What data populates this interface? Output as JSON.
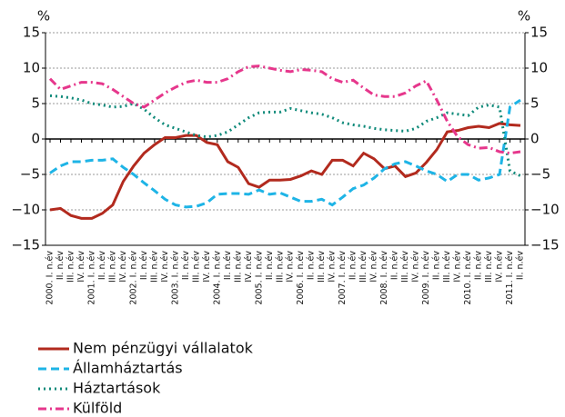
{
  "chart_data": {
    "type": "line",
    "y_unit": "%",
    "y2_unit": "%",
    "categories": [
      "2000. I. n.év",
      "II. n.év",
      "III. n.év",
      "IV. n.év",
      "2001. I. n.év",
      "II. n.év",
      "III. n.év",
      "IV. n.év",
      "2002. I. n.év",
      "II. n.év",
      "III. n.év",
      "IV. n.év",
      "2003. I. n.év",
      "II. n.év",
      "III. n.év",
      "IV. n.év",
      "2004. I. n.év",
      "II. n.év",
      "III. n.év",
      "IV. n.év",
      "2005. I. n.év",
      "II. n.év",
      "III. n.év",
      "IV. n.év",
      "2006. I. n.év",
      "II. n.év",
      "III. n.év",
      "IV. n.év",
      "2007. I. n.év",
      "II. n.év",
      "III. n.év",
      "IV. n.év",
      "2008. I. n.év",
      "II. n.év",
      "III. n.év",
      "IV. n.év",
      "2009. I. n.év",
      "II. n.év",
      "III. n.év",
      "IV. n.év",
      "2010. I. n.év",
      "II. n.év",
      "III. n.év",
      "IV. n.év",
      "2011. I. n.év",
      "II. n.év"
    ],
    "series": [
      {
        "name": "Nem pénzügyi vállalatok",
        "color": "#b22a1e",
        "dash": "solid",
        "values": [
          -10,
          -9.8,
          -10.8,
          -11.2,
          -11.2,
          -10.5,
          -9.3,
          -6,
          -3.8,
          -2,
          -0.8,
          0.2,
          0.2,
          0.5,
          0.5,
          -0.5,
          -0.8,
          -3.2,
          -4,
          -6.3,
          -6.8,
          -5.8,
          -5.8,
          -5.7,
          -5.2,
          -4.5,
          -5,
          -3,
          -3,
          -3.8,
          -2,
          -2.8,
          -4.2,
          -3.8,
          -5.3,
          -4.8,
          -3.3,
          -1.5,
          1,
          1.2,
          1.6,
          1.8,
          1.6,
          2.2,
          2,
          1.9
        ]
      },
      {
        "name": "Államháztartás",
        "color": "#1eb4e6",
        "dash": "dash",
        "values": [
          -4.8,
          -3.8,
          -3.2,
          -3.2,
          -3,
          -3,
          -2.8,
          -4,
          -5,
          -6.2,
          -7.3,
          -8.5,
          -9.3,
          -9.6,
          -9.5,
          -9,
          -7.8,
          -7.7,
          -7.7,
          -7.8,
          -7.2,
          -7.8,
          -7.6,
          -8.2,
          -8.8,
          -8.8,
          -8.5,
          -9.3,
          -8.2,
          -7,
          -6.5,
          -5.5,
          -4.2,
          -3.5,
          -3.2,
          -3.8,
          -4.5,
          -5,
          -6,
          -5,
          -5,
          -5.8,
          -5.5,
          -5,
          4.5,
          5.5
        ]
      },
      {
        "name": "Háztartások",
        "color": "#0f8a7a",
        "dash": "dot",
        "values": [
          6.1,
          6,
          5.8,
          5.5,
          5,
          4.8,
          4.5,
          4.6,
          5,
          4.2,
          3,
          2,
          1.5,
          1,
          0.5,
          0.3,
          0.5,
          1,
          2,
          3,
          3.7,
          3.8,
          3.8,
          4.3,
          4,
          3.7,
          3.5,
          3,
          2.3,
          2,
          1.8,
          1.5,
          1.3,
          1.2,
          1.1,
          1.5,
          2.5,
          3,
          3.7,
          3.5,
          3.3,
          4.5,
          4.8,
          4.5,
          -4.5,
          -5.2
        ]
      },
      {
        "name": "Külföld",
        "color": "#e6378c",
        "dash": "dashdot",
        "values": [
          8.5,
          7,
          7.5,
          8,
          8,
          7.8,
          7,
          6,
          5,
          4.5,
          5.5,
          6.5,
          7.3,
          8,
          8.3,
          8,
          8,
          8.5,
          9.5,
          10.2,
          10.3,
          10,
          9.7,
          9.5,
          9.8,
          9.7,
          9.5,
          8.5,
          8,
          8.3,
          7.2,
          6.2,
          6,
          6,
          6.5,
          7.5,
          8.2,
          5.5,
          2.5,
          0.3,
          -0.8,
          -1.3,
          -1.2,
          -1.8,
          -2,
          -1.8
        ]
      }
    ],
    "ylim": [
      -15,
      15
    ],
    "yticks": [
      {
        "value": -15,
        "label": "−15"
      },
      {
        "value": -10,
        "label": "−10"
      },
      {
        "value": -5,
        "label": "−5"
      },
      0,
      5,
      10,
      15
    ],
    "y2lim": [
      -15,
      15
    ],
    "y2ticks": [
      {
        "value": -15,
        "label": "−15"
      },
      {
        "value": -10,
        "label": "−10"
      },
      {
        "value": -5,
        "label": "−5"
      },
      0,
      5,
      10,
      15
    ],
    "grid": true
  }
}
